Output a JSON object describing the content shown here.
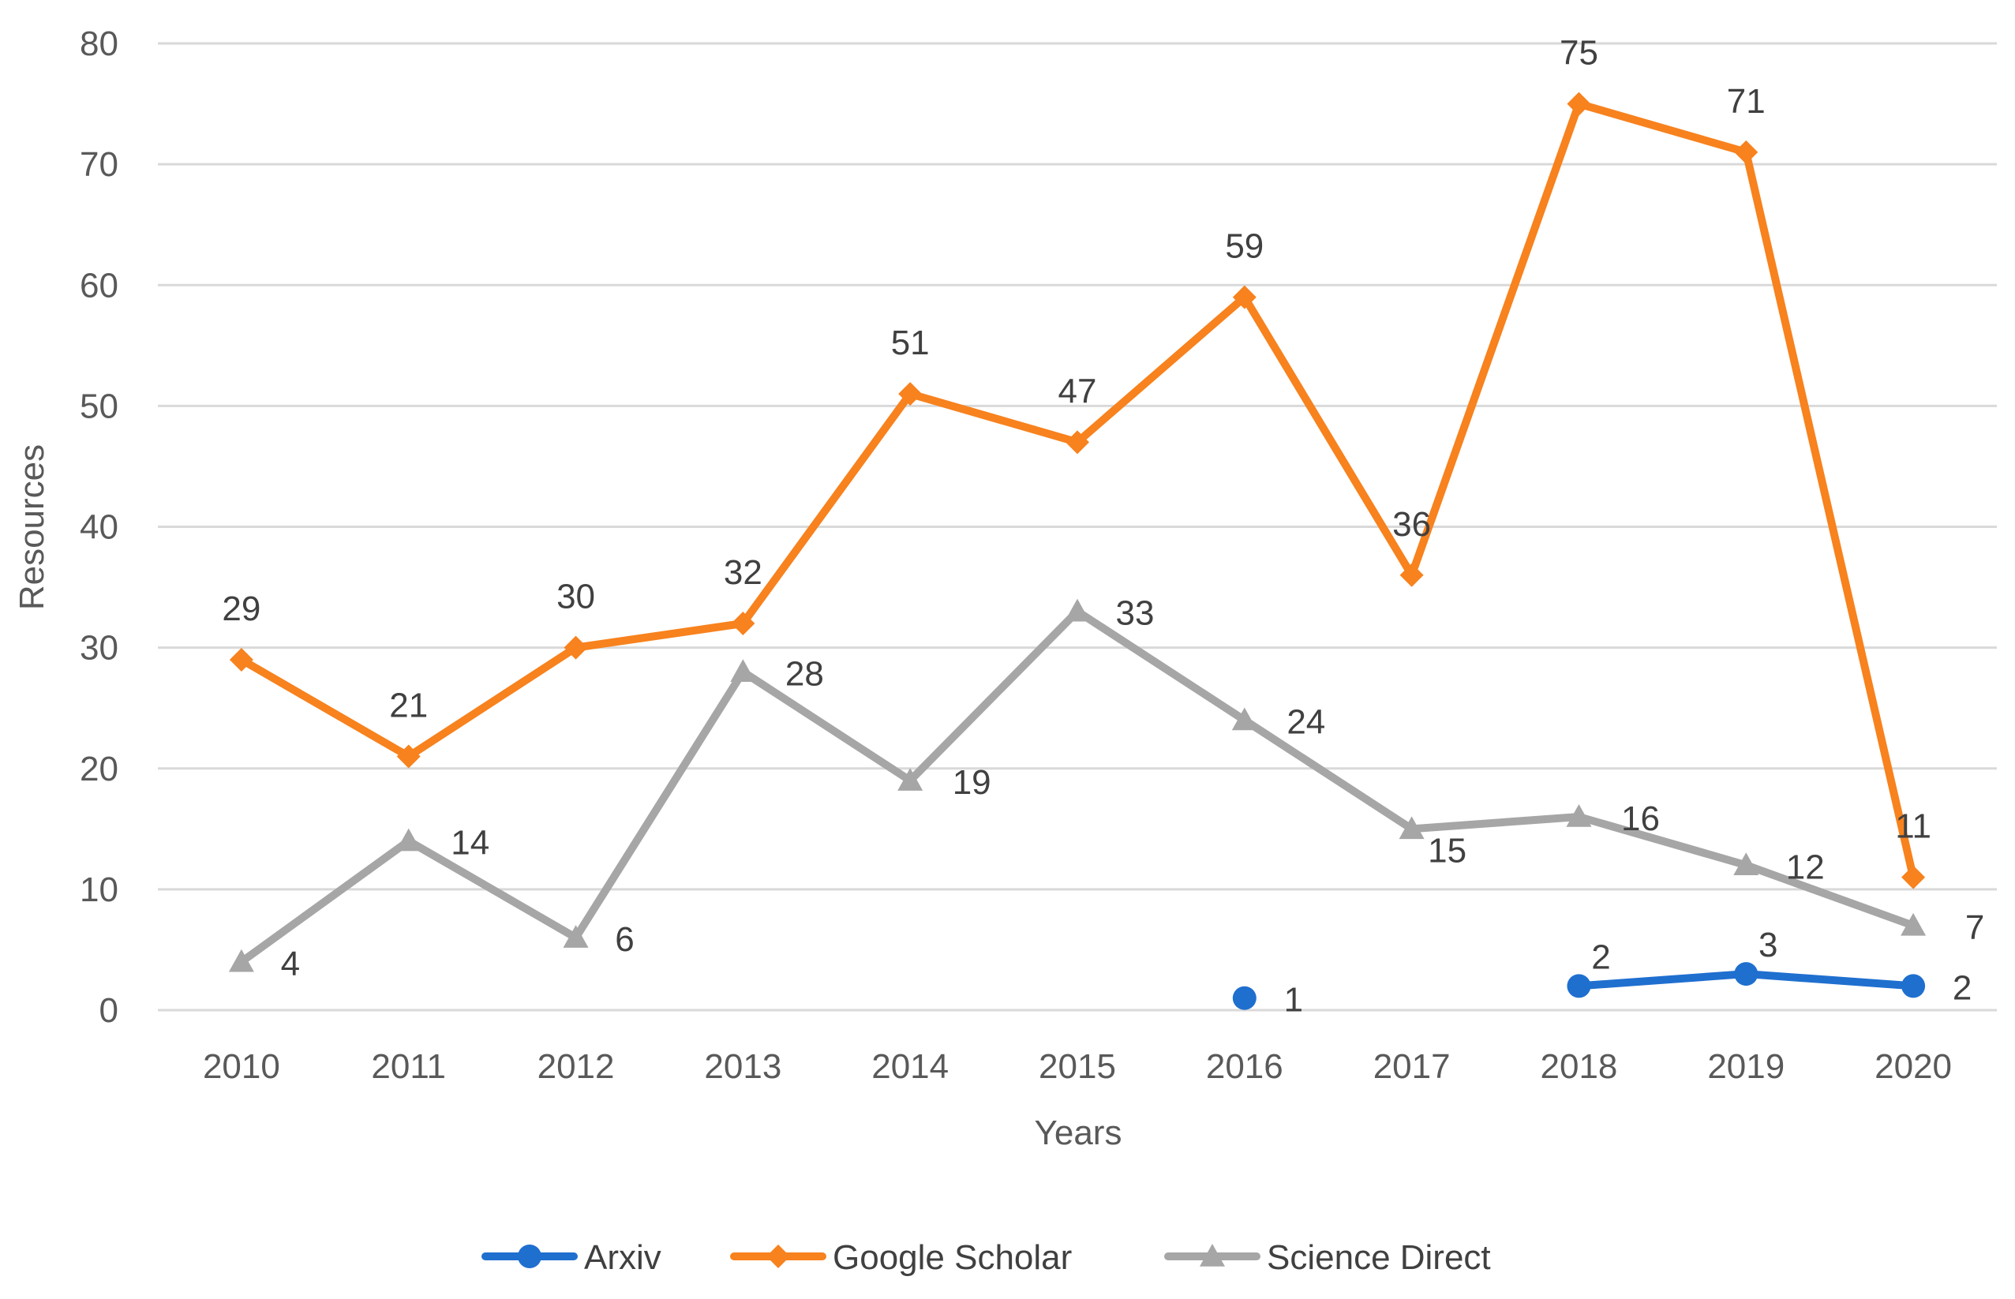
{
  "chart_data": {
    "type": "line",
    "title": "",
    "xlabel": "Years",
    "ylabel": "Resources",
    "categories": [
      "2010",
      "2011",
      "2012",
      "2013",
      "2014",
      "2015",
      "2016",
      "2017",
      "2018",
      "2019",
      "2020"
    ],
    "ylim": [
      0,
      80
    ],
    "yticks": [
      0,
      10,
      20,
      30,
      40,
      50,
      60,
      70,
      80
    ],
    "grid": true,
    "legend_position": "bottom",
    "series": [
      {
        "name": "Arxiv",
        "color": "#1f6fcf",
        "marker": "circle",
        "values": [
          null,
          null,
          null,
          null,
          null,
          null,
          1,
          null,
          2,
          3,
          2
        ],
        "labels": [
          "",
          "",
          "",
          "",
          "",
          "",
          "1",
          "",
          "2",
          "3",
          "2"
        ]
      },
      {
        "name": "Google Scholar",
        "color": "#f7821e",
        "marker": "diamond",
        "values": [
          29,
          21,
          30,
          32,
          51,
          47,
          59,
          36,
          75,
          71,
          11
        ],
        "labels": [
          "29",
          "21",
          "30",
          "32",
          "51",
          "47",
          "59",
          "36",
          "75",
          "71",
          "11"
        ]
      },
      {
        "name": "Science Direct",
        "color": "#a6a6a6",
        "marker": "triangle",
        "values": [
          4,
          14,
          6,
          28,
          19,
          33,
          24,
          15,
          16,
          12,
          7
        ],
        "labels": [
          "4",
          "14",
          "6",
          "28",
          "19",
          "33",
          "24",
          "15",
          "16",
          "12",
          "7"
        ]
      }
    ]
  }
}
